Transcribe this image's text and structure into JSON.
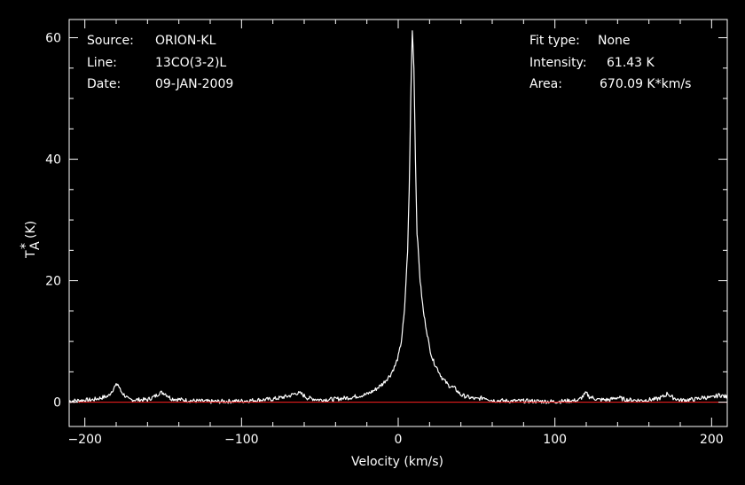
{
  "header": {
    "source_label": "Source:",
    "source_value": "ORION-KL",
    "line_label": "Line:",
    "line_value": "13CO(3-2)L",
    "date_label": "Date:",
    "date_value": "09-JAN-2009",
    "fit_label": "Fit type:",
    "fit_value": "None",
    "intensity_label": "Intensity:",
    "intensity_value": "61.43 K",
    "area_label": "Area:",
    "area_value": "670.09 K*km/s"
  },
  "chart_data": {
    "type": "line",
    "xlabel": "Velocity (km/s)",
    "ylabel_main": "T",
    "ylabel_sup": "*",
    "ylabel_sub": "A",
    "ylabel_unit": "(K)",
    "xlim": [
      -210,
      210
    ],
    "ylim": [
      -4,
      63
    ],
    "x_ticks": [
      -200,
      -100,
      0,
      100,
      200
    ],
    "x_tick_labels": [
      "−200",
      "−100",
      "0",
      "100",
      "200"
    ],
    "y_ticks": [
      0,
      20,
      40,
      60
    ],
    "y_tick_labels": [
      "0",
      "20",
      "40",
      "60"
    ],
    "baseline": 0,
    "series": [
      {
        "color": "#ffffff",
        "x": [
          -210,
          -195,
          -185,
          -181,
          -179,
          -177,
          -172,
          -160,
          -155,
          -152,
          -149,
          -145,
          -135,
          -120,
          -100,
          -80,
          -70,
          -65,
          -62,
          -58,
          -50,
          -40,
          -30,
          -20,
          -15,
          -10,
          -5,
          -2,
          0,
          2,
          4,
          6,
          7,
          8,
          9,
          10,
          11,
          12,
          14,
          16,
          18,
          20,
          22,
          25,
          28,
          32,
          36,
          40,
          45,
          50,
          55,
          60,
          70,
          80,
          100,
          115,
          118,
          120,
          122,
          128,
          135,
          140,
          145,
          155,
          165,
          170,
          172,
          174,
          180,
          190,
          195,
          200,
          205,
          210
        ],
        "y": [
          0.2,
          0.4,
          1.0,
          2.5,
          3.0,
          1.8,
          0.4,
          0.4,
          1.0,
          1.6,
          1.5,
          0.6,
          0.3,
          0.1,
          0.2,
          0.5,
          1.0,
          1.5,
          1.4,
          0.7,
          0.4,
          0.5,
          0.8,
          1.3,
          2.0,
          3.0,
          4.5,
          6.0,
          7.5,
          10.0,
          15.0,
          25.0,
          35.0,
          50.0,
          61.43,
          55.0,
          40.0,
          28.0,
          20.0,
          15.0,
          12.0,
          9.0,
          7.0,
          5.5,
          4.0,
          2.8,
          2.3,
          1.2,
          0.8,
          0.5,
          0.8,
          0.3,
          0.2,
          0.2,
          0.1,
          0.3,
          1.0,
          1.5,
          0.9,
          0.4,
          0.4,
          0.8,
          0.4,
          0.3,
          0.5,
          1.0,
          1.5,
          0.9,
          0.3,
          0.5,
          0.8,
          0.7,
          1.2,
          0.8
        ]
      }
    ]
  }
}
